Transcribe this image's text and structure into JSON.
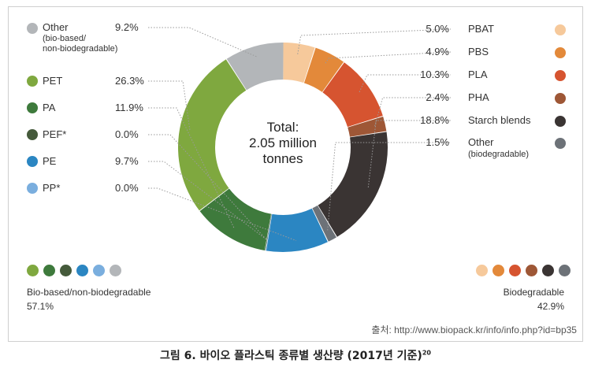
{
  "chart_data": {
    "type": "pie",
    "center_label": [
      "Total:",
      "2.05 million",
      "tonnes"
    ],
    "slices": [
      {
        "name": "PBAT",
        "value": 5.0,
        "value_label": "5.0%",
        "color": "#f6c99b",
        "group": "biodegradable"
      },
      {
        "name": "PBS",
        "value": 4.9,
        "value_label": "4.9%",
        "color": "#e3893a",
        "group": "biodegradable"
      },
      {
        "name": "PLA",
        "value": 10.3,
        "value_label": "10.3%",
        "color": "#d65430",
        "group": "biodegradable"
      },
      {
        "name": "PHA",
        "value": 2.4,
        "value_label": "2.4%",
        "color": "#9e5736",
        "group": "biodegradable"
      },
      {
        "name": "Starch blends",
        "value": 18.8,
        "value_label": "18.8%",
        "color": "#3a3433",
        "group": "biodegradable"
      },
      {
        "name": "Other",
        "sub": "(biodegradable)",
        "value": 1.5,
        "value_label": "1.5%",
        "color": "#6d7278",
        "group": "biodegradable"
      },
      {
        "name": "PE",
        "value": 9.7,
        "value_label": "9.7%",
        "color": "#2b86c2",
        "group": "bio-based"
      },
      {
        "name": "PP*",
        "value": 0.0,
        "value_label": "0.0%",
        "color": "#7aaede",
        "group": "bio-based"
      },
      {
        "name": "PEF*",
        "value": 0.0,
        "value_label": "0.0%",
        "color": "#455a3b",
        "group": "bio-based"
      },
      {
        "name": "PA",
        "value": 11.9,
        "value_label": "11.9%",
        "color": "#3e7a3c",
        "group": "bio-based"
      },
      {
        "name": "PET",
        "value": 26.3,
        "value_label": "26.3%",
        "color": "#7fa83f",
        "group": "bio-based"
      },
      {
        "name": "Other",
        "sub": "(bio-based/ non-biodegradable)",
        "value": 9.2,
        "value_label": "9.2%",
        "color": "#b3b6b9",
        "group": "bio-based"
      }
    ],
    "groups": {
      "bio_based": {
        "label": "Bio-based/non-biodegradable",
        "value_label": "57.1%",
        "colors": [
          "#7fa83f",
          "#3e7a3c",
          "#455a3b",
          "#2b86c2",
          "#7aaede",
          "#b3b6b9"
        ]
      },
      "biodegradable": {
        "label": "Biodegradable",
        "value_label": "42.9%",
        "colors": [
          "#f6c99b",
          "#e3893a",
          "#d65430",
          "#9e5736",
          "#3a3433",
          "#6d7278"
        ]
      }
    }
  },
  "source_text": "출처: http://www.biopack.kr/info/info.php?id=bp35",
  "caption": "그림 6. 바이오 플라스틱 종류별 생산량 (2017년 기준)",
  "caption_sup": "20",
  "left_legend": [
    {
      "name": "Other",
      "sub1": "(bio-based/",
      "sub2": "non-biodegradable)",
      "pct": "9.2%",
      "color": "#b3b6b9"
    },
    {
      "name": "PET",
      "pct": "26.3%",
      "color": "#7fa83f"
    },
    {
      "name": "PA",
      "pct": "11.9%",
      "color": "#3e7a3c"
    },
    {
      "name": "PEF*",
      "pct": "0.0%",
      "color": "#455a3b"
    },
    {
      "name": "PE",
      "pct": "9.7%",
      "color": "#2b86c2"
    },
    {
      "name": "PP*",
      "pct": "0.0%",
      "color": "#7aaede"
    }
  ],
  "right_legend": [
    {
      "name": "PBAT",
      "pct": "5.0%",
      "color": "#f6c99b"
    },
    {
      "name": "PBS",
      "pct": "4.9%",
      "color": "#e3893a"
    },
    {
      "name": "PLA",
      "pct": "10.3%",
      "color": "#d65430"
    },
    {
      "name": "PHA",
      "pct": "2.4%",
      "color": "#9e5736"
    },
    {
      "name": "Starch blends",
      "pct": "18.8%",
      "color": "#3a3433"
    },
    {
      "name": "Other",
      "sub1": "(biodegradable)",
      "pct": "1.5%",
      "color": "#6d7278"
    }
  ]
}
